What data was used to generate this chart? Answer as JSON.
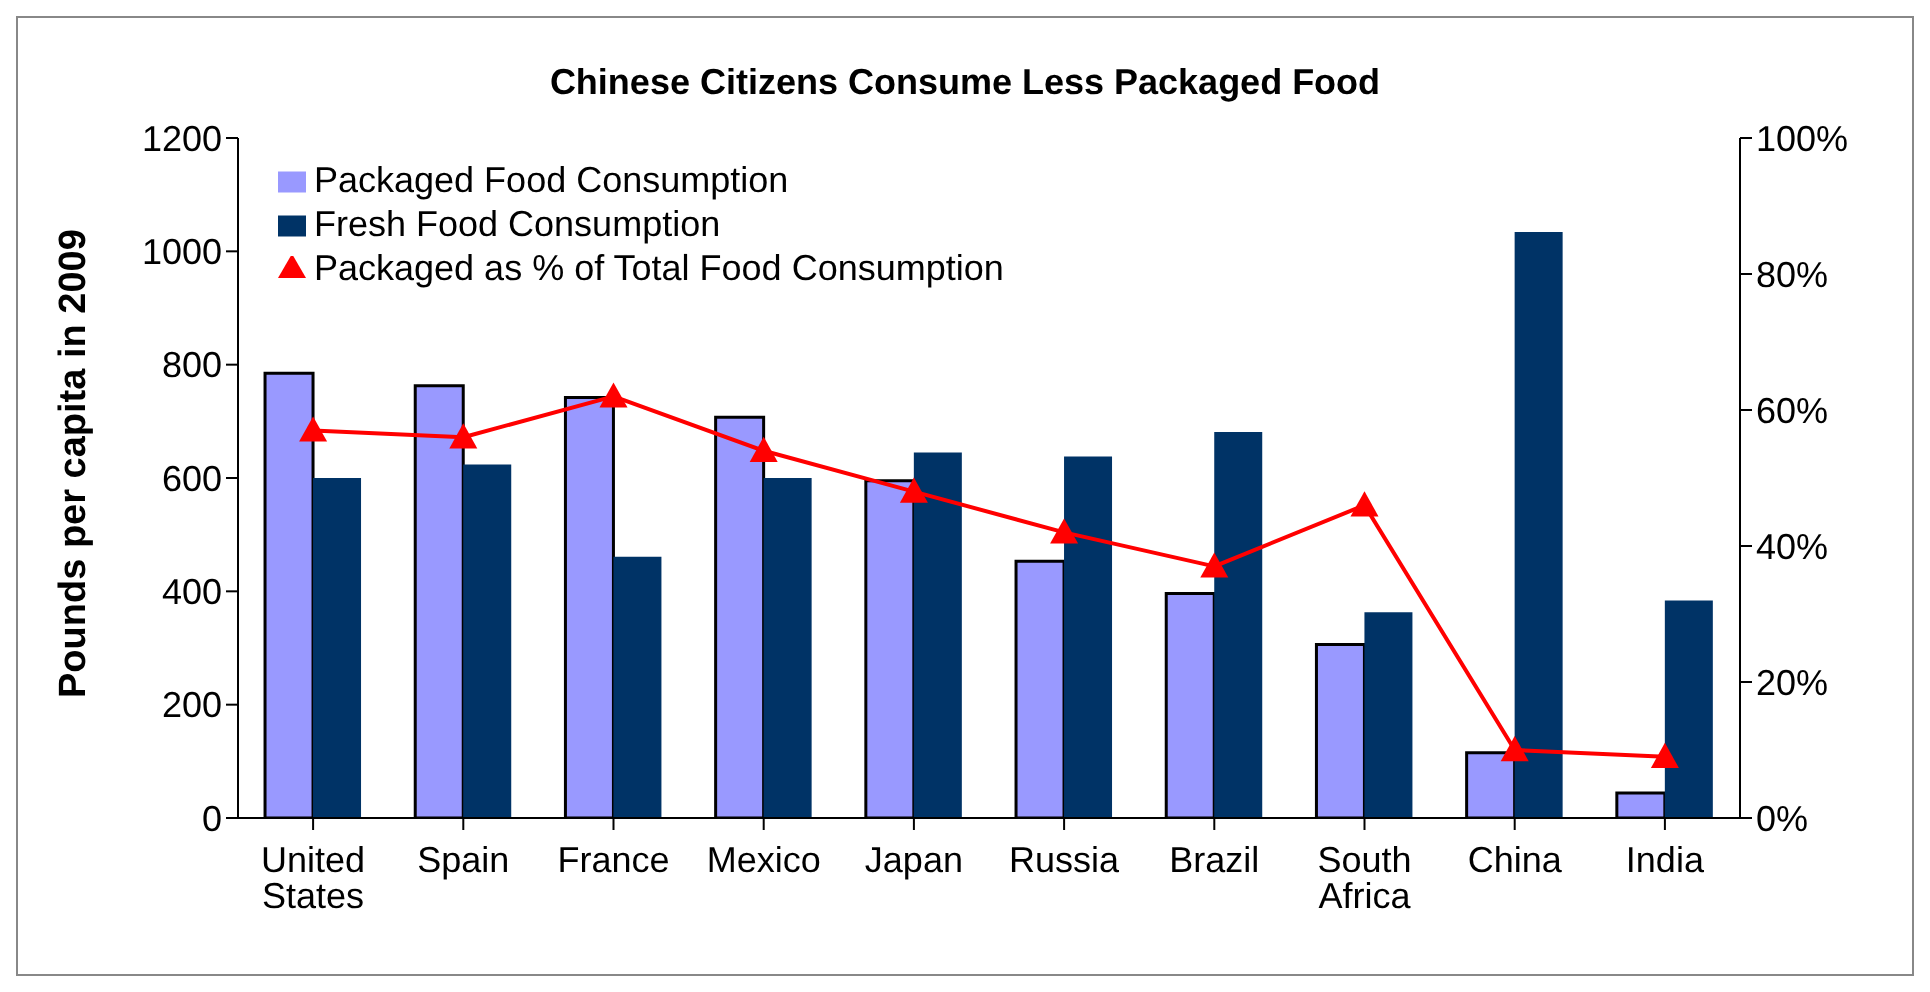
{
  "chart_data": {
    "type": "bar",
    "title": "Chinese Citizens Consume Less Packaged Food",
    "ylabel": "Pounds per capita in 2009",
    "categories": [
      "United States",
      "Spain",
      "France",
      "Mexico",
      "Japan",
      "Russia",
      "Brazil",
      "South Africa",
      "China",
      "India"
    ],
    "series": [
      {
        "name": "Packaged Food Consumption",
        "color": "#9999ff",
        "values": [
          785,
          763,
          742,
          707,
          595,
          453,
          396,
          306,
          115,
          44
        ]
      },
      {
        "name": "Fresh Food Consumption",
        "color": "#003366",
        "values": [
          600,
          624,
          461,
          600,
          645,
          638,
          681,
          363,
          1034,
          384
        ]
      },
      {
        "name": "Packaged as % of Total Food Consumption",
        "type": "line",
        "axis": "y2",
        "color": "#ff0000",
        "marker": "triangle",
        "values": [
          57,
          56,
          62,
          54,
          48,
          42,
          37,
          46,
          10,
          9
        ]
      }
    ],
    "ylim": [
      0,
      1200
    ],
    "yticks": [
      0,
      200,
      400,
      600,
      800,
      1000,
      1200
    ],
    "y2lim": [
      0,
      100
    ],
    "y2ticks": [
      {
        "value": 0,
        "label": "0%"
      },
      {
        "value": 20,
        "label": "20%"
      },
      {
        "value": 40,
        "label": "40%"
      },
      {
        "value": 60,
        "label": "60%"
      },
      {
        "value": 80,
        "label": "80%"
      },
      {
        "value": 100,
        "label": "100%"
      }
    ],
    "grid": false,
    "legend": "top left"
  }
}
